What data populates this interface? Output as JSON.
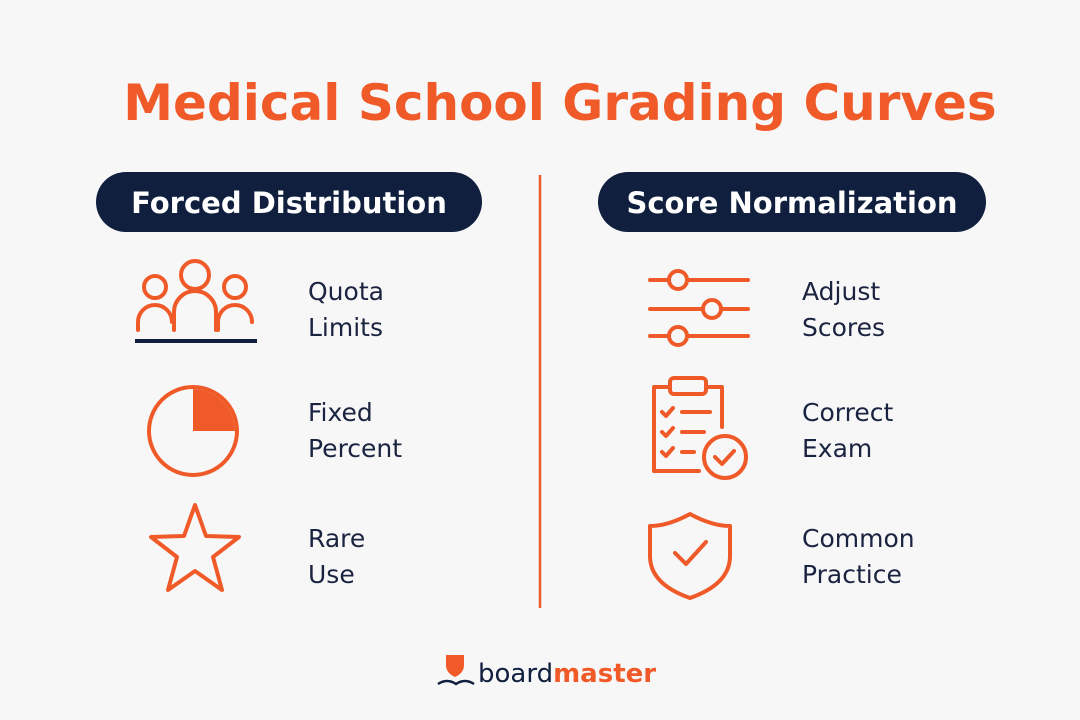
{
  "title": "Medical School Grading Curves",
  "columns": [
    {
      "header": "Forced Distribution",
      "items": [
        {
          "lines": [
            "Quota",
            "Limits"
          ]
        },
        {
          "lines": [
            "Fixed",
            "Percent"
          ]
        },
        {
          "lines": [
            "Rare",
            "Use"
          ]
        }
      ]
    },
    {
      "header": "Score Normalization",
      "items": [
        {
          "lines": [
            "Adjust",
            "Scores"
          ]
        },
        {
          "lines": [
            "Correct",
            "Exam"
          ]
        },
        {
          "lines": [
            "Common",
            "Practice"
          ]
        }
      ]
    }
  ],
  "brand": {
    "first": "board",
    "second": "master"
  }
}
